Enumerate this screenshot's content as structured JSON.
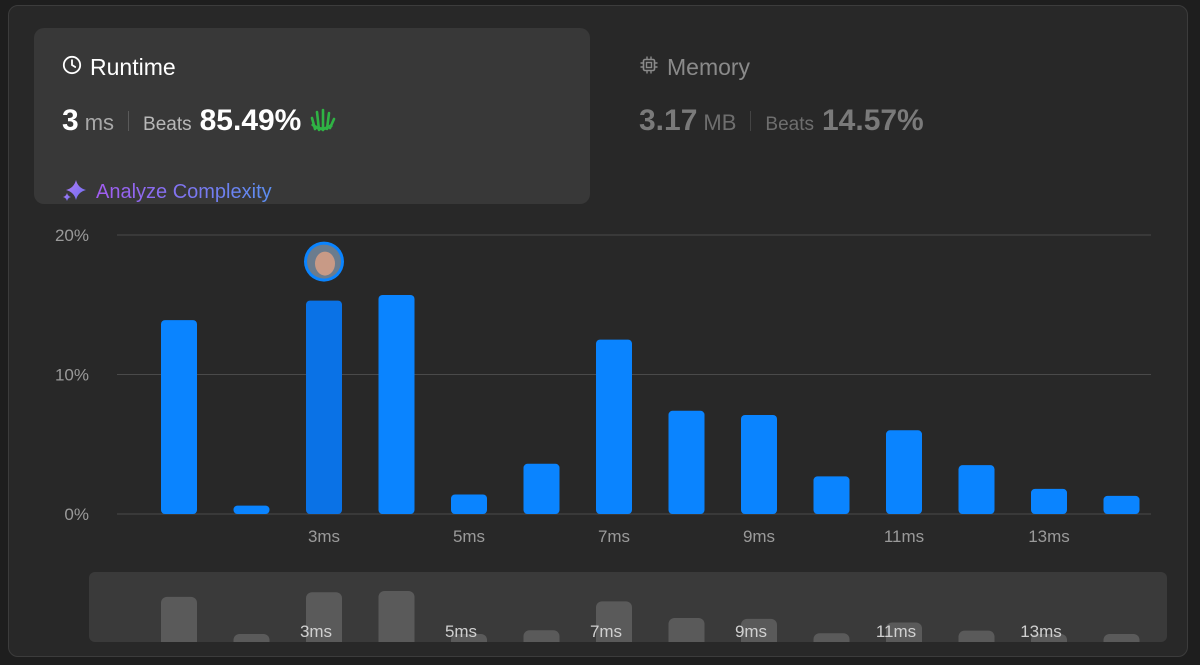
{
  "runtime": {
    "title": "Runtime",
    "value": "3",
    "unit": "ms",
    "beats_label": "Beats",
    "beats_value": "85.49%",
    "analyze_label": "Analyze Complexity"
  },
  "memory": {
    "title": "Memory",
    "value": "3.17",
    "unit": "MB",
    "beats_label": "Beats",
    "beats_value": "14.57%"
  },
  "colors": {
    "bar": "#0a84ff",
    "bar_highlight": "#0a72e6",
    "overview_bar": "#5a5a5a",
    "clap": "#2fb344"
  },
  "chart_data": {
    "type": "bar",
    "x": [
      1,
      2,
      3,
      4,
      5,
      6,
      7,
      8,
      9,
      10,
      11,
      12,
      13,
      14
    ],
    "values": [
      13.9,
      0.6,
      15.3,
      15.7,
      1.4,
      3.6,
      12.5,
      7.4,
      7.1,
      2.7,
      6.0,
      3.5,
      1.8,
      1.3
    ],
    "xticks": [
      "3ms",
      "5ms",
      "7ms",
      "9ms",
      "11ms",
      "13ms"
    ],
    "xtick_positions": [
      3,
      5,
      7,
      9,
      11,
      13
    ],
    "yticks": [
      "0%",
      "10%",
      "20%"
    ],
    "ytick_values": [
      0,
      10,
      20
    ],
    "ylim": [
      0,
      20
    ],
    "highlight_x": 3,
    "grid": true
  }
}
